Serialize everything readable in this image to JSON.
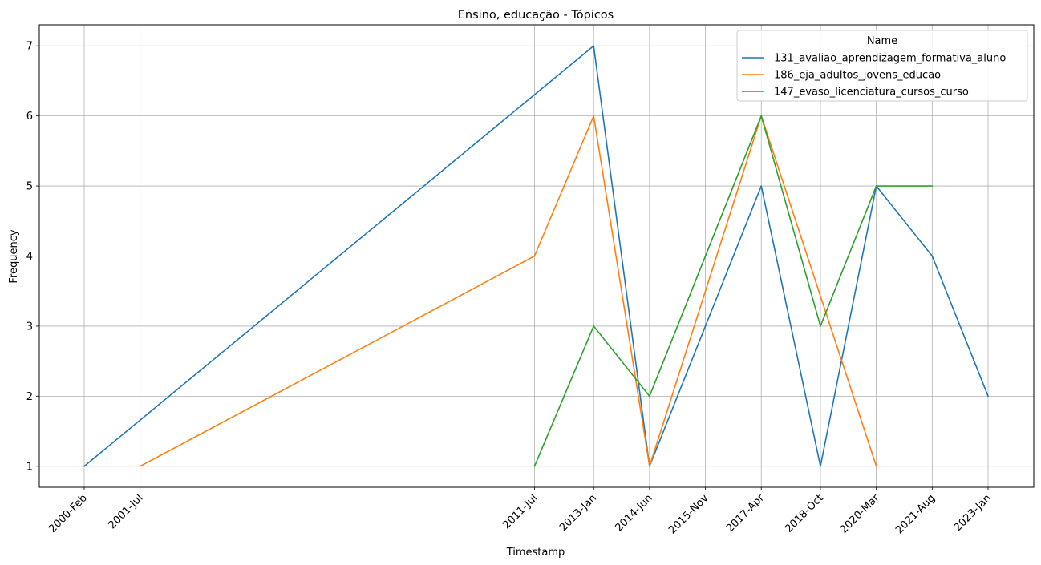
{
  "chart_data": {
    "type": "line",
    "title": "Ensino, educação - Tópicos",
    "xlabel": "Timestamp",
    "ylabel": "Frequency",
    "x_ticks": [
      "2000-Feb",
      "2001-Jul",
      "2011-Jul",
      "2013-Jan",
      "2014-Jun",
      "2015-Nov",
      "2017-Apr",
      "2018-Oct",
      "2020-Mar",
      "2021-Aug",
      "2023-Jan"
    ],
    "y_ticks": [
      1,
      2,
      3,
      4,
      5,
      6,
      7
    ],
    "ylim": [
      0.7,
      7.3
    ],
    "grid": true,
    "legend": {
      "title": "Name",
      "placement": "top-right"
    },
    "series": [
      {
        "name": "131_avaliao_aprendizagem_formativa_aluno",
        "color": "#1f77b4",
        "points": [
          {
            "x": "2000-Feb",
            "y": 1
          },
          {
            "x": "2013-Jan",
            "y": 7
          },
          {
            "x": "2014-Jun",
            "y": 1
          },
          {
            "x": "2015-Nov",
            "y": 3
          },
          {
            "x": "2017-Apr",
            "y": 5
          },
          {
            "x": "2018-Oct",
            "y": 1
          },
          {
            "x": "2020-Mar",
            "y": 5
          },
          {
            "x": "2021-Aug",
            "y": 4
          },
          {
            "x": "2023-Jan",
            "y": 2
          }
        ]
      },
      {
        "name": "186_eja_adultos_jovens_educao",
        "color": "#ff7f0e",
        "points": [
          {
            "x": "2001-Jul",
            "y": 1
          },
          {
            "x": "2011-Jul",
            "y": 4
          },
          {
            "x": "2013-Jan",
            "y": 6
          },
          {
            "x": "2014-Jun",
            "y": 1
          },
          {
            "x": "2017-Apr",
            "y": 6
          },
          {
            "x": "2020-Mar",
            "y": 1
          }
        ]
      },
      {
        "name": "147_evaso_licenciatura_cursos_curso",
        "color": "#2ca02c",
        "points": [
          {
            "x": "2011-Jul",
            "y": 1
          },
          {
            "x": "2013-Jan",
            "y": 3
          },
          {
            "x": "2014-Jun",
            "y": 2
          },
          {
            "x": "2017-Apr",
            "y": 6
          },
          {
            "x": "2018-Oct",
            "y": 3
          },
          {
            "x": "2020-Mar",
            "y": 5
          },
          {
            "x": "2021-Aug",
            "y": 5
          }
        ]
      }
    ]
  }
}
